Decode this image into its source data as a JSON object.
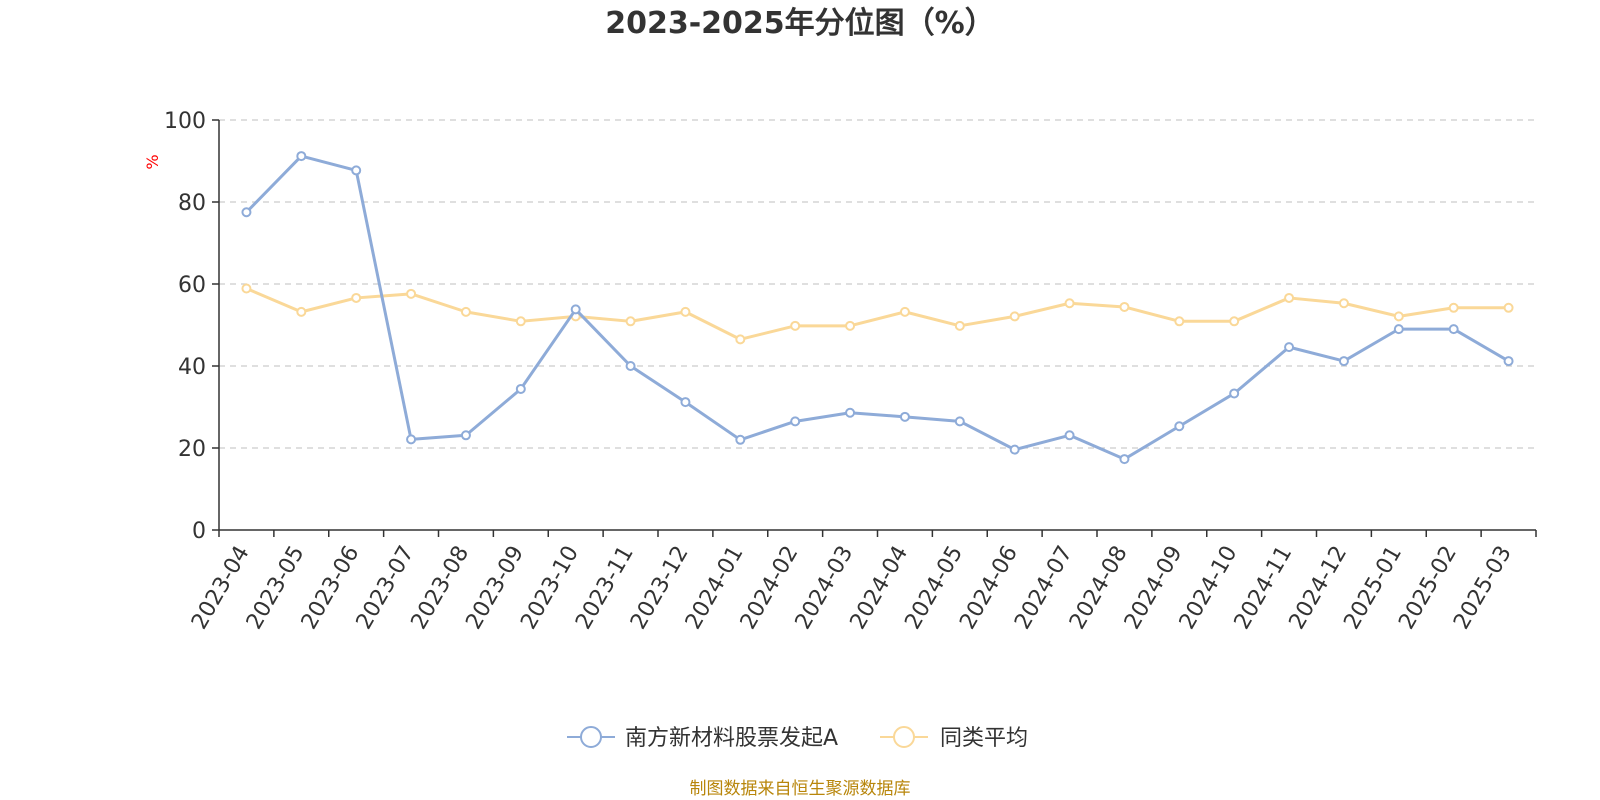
{
  "chart_data": {
    "type": "line",
    "title": "2023-2025年分位图（%）",
    "ylabel": "%",
    "xlabel": "",
    "ylim": [
      0,
      100
    ],
    "yticks": [
      0,
      20,
      40,
      60,
      80,
      100
    ],
    "grid": true,
    "legend_position": "bottom-center",
    "categories": [
      "2023-04",
      "2023-05",
      "2023-06",
      "2023-07",
      "2023-08",
      "2023-09",
      "2023-10",
      "2023-11",
      "2023-12",
      "2024-01",
      "2024-02",
      "2024-03",
      "2024-04",
      "2024-05",
      "2024-06",
      "2024-07",
      "2024-08",
      "2024-09",
      "2024-10",
      "2024-11",
      "2024-12",
      "2025-01",
      "2025-02",
      "2025-03"
    ],
    "series": [
      {
        "name": "南方新材料股票发起A",
        "color": "#8eabd8",
        "values": [
          77.5,
          91.2,
          87.7,
          22.1,
          23.1,
          34.4,
          53.8,
          40.0,
          31.2,
          22.0,
          26.5,
          28.6,
          27.6,
          26.5,
          19.6,
          23.1,
          17.3,
          25.3,
          33.3,
          44.6,
          41.2,
          49.0,
          49.0,
          41.2
        ]
      },
      {
        "name": "同类平均",
        "color": "#fad898",
        "values": [
          58.9,
          53.2,
          56.6,
          57.6,
          53.2,
          50.9,
          52.1,
          50.9,
          53.2,
          46.5,
          49.8,
          49.8,
          53.2,
          49.8,
          52.1,
          55.3,
          54.4,
          50.9,
          50.9,
          56.6,
          55.3,
          52.1,
          54.2,
          54.2
        ]
      }
    ]
  },
  "source_text": "制图数据来自恒生聚源数据库",
  "colors": {
    "axis": "#333333",
    "grid": "#cccccc",
    "ylabel": "#ff0000",
    "source": "#b8860b"
  }
}
